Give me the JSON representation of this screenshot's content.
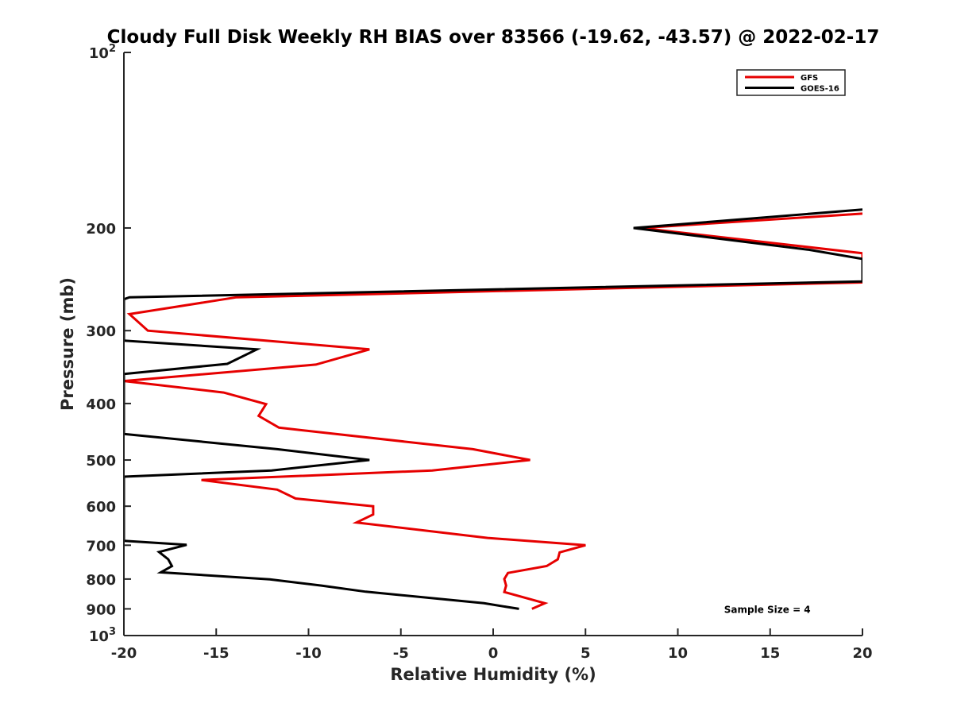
{
  "chart_data": {
    "type": "line",
    "title": "Cloudy Full Disk Weekly RH BIAS over 83566 (-19.62, -43.57) @ 2022-02-17",
    "xlabel": "Relative Humidity (%)",
    "ylabel": "Pressure (mb)",
    "xlim": [
      -20,
      20
    ],
    "ylim": [
      100,
      1000
    ],
    "yscale": "log",
    "y_reversed": true,
    "grid": false,
    "legend_position": "top-right",
    "x_ticks": [
      {
        "value": -20,
        "label": "-20"
      },
      {
        "value": -15,
        "label": "-15"
      },
      {
        "value": -10,
        "label": "-10"
      },
      {
        "value": -5,
        "label": "-5"
      },
      {
        "value": 0,
        "label": "0"
      },
      {
        "value": 5,
        "label": "5"
      },
      {
        "value": 10,
        "label": "10"
      },
      {
        "value": 15,
        "label": "15"
      },
      {
        "value": 20,
        "label": "20"
      }
    ],
    "y_ticks": [
      {
        "value": 100,
        "base": "10",
        "exp": "2"
      },
      {
        "value": 200,
        "label": "200"
      },
      {
        "value": 300,
        "label": "300"
      },
      {
        "value": 400,
        "label": "400"
      },
      {
        "value": 500,
        "label": "500"
      },
      {
        "value": 600,
        "label": "600"
      },
      {
        "value": 700,
        "label": "700"
      },
      {
        "value": 800,
        "label": "800"
      },
      {
        "value": 900,
        "label": "900"
      },
      {
        "value": 1000,
        "base": "10",
        "exp": "3"
      }
    ],
    "series": [
      {
        "name": "GFS",
        "color": "#e60000",
        "points": [
          [
            20,
            189
          ],
          [
            8,
            200
          ],
          [
            20,
            221
          ],
          [
            20,
            248
          ],
          [
            -13.9,
            263
          ],
          [
            -19.7,
            281
          ],
          [
            -18.7,
            300
          ],
          [
            -6.7,
            323
          ],
          [
            -9.6,
            343
          ],
          [
            -20,
            366
          ],
          [
            -14.6,
            383
          ],
          [
            -12.3,
            401
          ],
          [
            -12.7,
            420
          ],
          [
            -11.6,
            440
          ],
          [
            -1.1,
            479
          ],
          [
            2,
            500
          ],
          [
            -3.3,
            521
          ],
          [
            -15.8,
            541
          ],
          [
            -11.7,
            562
          ],
          [
            -10.7,
            582
          ],
          [
            -6.5,
            600
          ],
          [
            -6.5,
            620
          ],
          [
            -7.4,
            640
          ],
          [
            -0.3,
            680
          ],
          [
            5,
            700
          ],
          [
            3.6,
            720
          ],
          [
            3.5,
            740
          ],
          [
            2.9,
            760
          ],
          [
            0.8,
            781
          ],
          [
            0.6,
            800
          ],
          [
            0.7,
            821
          ],
          [
            0.6,
            842
          ],
          [
            2.8,
            880
          ],
          [
            2.1,
            900
          ]
        ]
      },
      {
        "name": "GOES-16",
        "color": "#000000",
        "points": [
          [
            20,
            186
          ],
          [
            7.6,
            200
          ],
          [
            17.1,
            218
          ],
          [
            20,
            226
          ],
          [
            20,
            247
          ],
          [
            -19.7,
            263
          ],
          [
            -20,
            265
          ],
          [
            -20,
            312
          ],
          [
            -12.8,
            323
          ],
          [
            -14.4,
            342
          ],
          [
            -20,
            356
          ],
          [
            -20,
            451
          ],
          [
            -11.7,
            479
          ],
          [
            -6.7,
            500
          ],
          [
            -12,
            521
          ],
          [
            -20,
            534
          ],
          [
            -20,
            688
          ],
          [
            -16.6,
            699
          ],
          [
            -18.1,
            719
          ],
          [
            -17.6,
            740
          ],
          [
            -17.4,
            760
          ],
          [
            -18,
            779
          ],
          [
            -12.1,
            801
          ],
          [
            -9.3,
            821
          ],
          [
            -6.9,
            841
          ],
          [
            -0.5,
            880
          ],
          [
            1.4,
            900
          ]
        ]
      }
    ],
    "annotations": [
      {
        "text": "Sample Size = 4",
        "x": 15,
        "y": 900
      }
    ]
  }
}
